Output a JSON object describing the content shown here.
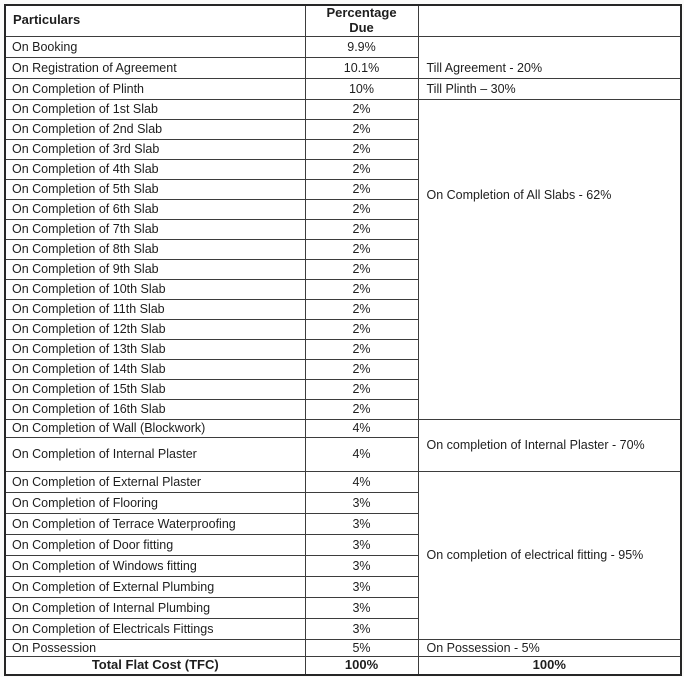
{
  "table": {
    "headers": {
      "particulars": "Particulars",
      "percentage_due": "Percentage\nDue"
    },
    "rows": [
      {
        "p": "On Booking",
        "v": "9.9%"
      },
      {
        "p": "On Registration of Agreement",
        "v": "10.1%"
      },
      {
        "p": "On Completion of Plinth",
        "v": "10%"
      },
      {
        "p": "On Completion of 1st Slab",
        "v": "2%"
      },
      {
        "p": "On Completion of 2nd Slab",
        "v": "2%"
      },
      {
        "p": "On Completion of 3rd Slab",
        "v": "2%"
      },
      {
        "p": "On Completion of 4th Slab",
        "v": "2%"
      },
      {
        "p": "On Completion of 5th Slab",
        "v": "2%"
      },
      {
        "p": "On Completion of 6th Slab",
        "v": "2%"
      },
      {
        "p": "On Completion of 7th Slab",
        "v": "2%"
      },
      {
        "p": "On Completion of 8th Slab",
        "v": "2%"
      },
      {
        "p": "On Completion of 9th Slab",
        "v": "2%"
      },
      {
        "p": "On Completion of 10th Slab",
        "v": "2%"
      },
      {
        "p": "On Completion of 11th Slab",
        "v": "2%"
      },
      {
        "p": "On Completion of 12th Slab",
        "v": "2%"
      },
      {
        "p": "On Completion of 13th Slab",
        "v": "2%"
      },
      {
        "p": "On Completion of 14th Slab",
        "v": "2%"
      },
      {
        "p": "On Completion of 15th Slab",
        "v": "2%"
      },
      {
        "p": "On Completion of 16th Slab",
        "v": "2%"
      },
      {
        "p": "On Completion of Wall (Blockwork)",
        "v": "4%"
      },
      {
        "p": "On Completion of Internal Plaster",
        "v": "4%"
      },
      {
        "p": "On Completion of External Plaster",
        "v": "4%"
      },
      {
        "p": "On Completion of Flooring",
        "v": "3%"
      },
      {
        "p": "On Completion of Terrace Waterproofing",
        "v": "3%"
      },
      {
        "p": "On Completion of Door fitting",
        "v": "3%"
      },
      {
        "p": "On Completion of Windows fitting",
        "v": "3%"
      },
      {
        "p": "On Completion of External Plumbing",
        "v": "3%"
      },
      {
        "p": "On Completion of Internal Plumbing",
        "v": "3%"
      },
      {
        "p": "On Completion of Electricals Fittings",
        "v": "3%"
      },
      {
        "p": "On Possession",
        "v": "5%"
      }
    ],
    "milestones": [
      {
        "row": 0,
        "span": 2,
        "label": "Till Agreement - 20%"
      },
      {
        "row": 2,
        "span": 1,
        "label": "Till Plinth – 30%"
      },
      {
        "row": 3,
        "span": 16,
        "label": "On Completion of All Slabs - 62%"
      },
      {
        "row": 19,
        "span": 2,
        "label": "On completion of Internal Plaster - 70%"
      },
      {
        "row": 21,
        "span": 8,
        "label": "On completion of electrical fitting - 95%"
      },
      {
        "row": 29,
        "span": 1,
        "label": "On Possession - 5%"
      }
    ],
    "total": {
      "label": "Total Flat Cost (TFC)",
      "percentage": "100%",
      "milestone_total": "100%"
    }
  }
}
